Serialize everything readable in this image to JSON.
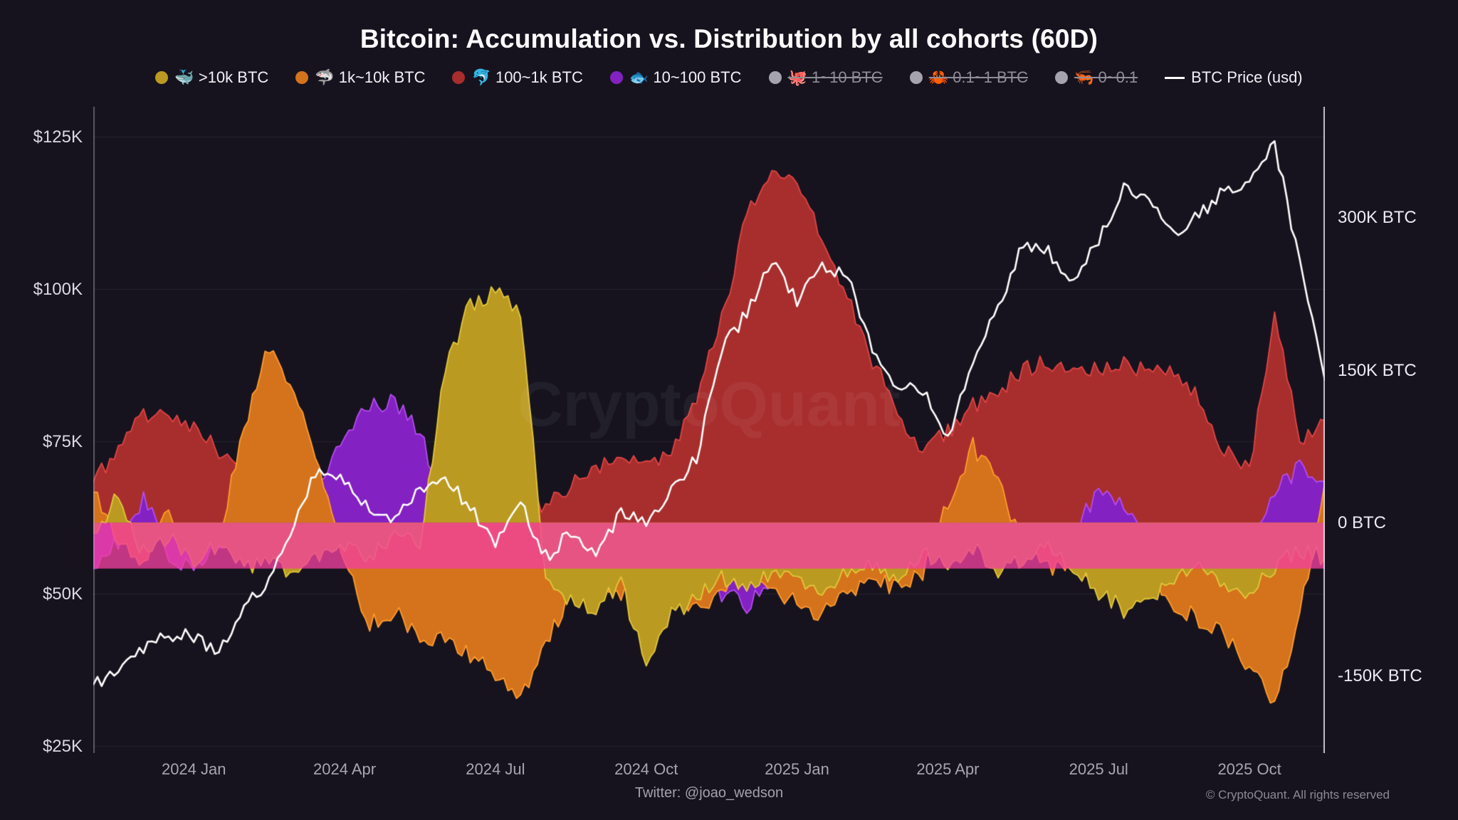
{
  "title": "Bitcoin: Accumulation vs. Distribution by all cohorts (60D)",
  "watermark": "CryptoQuant",
  "footer": {
    "twitter": "Twitter: @joao_wedson",
    "copyright": "© CryptoQuant. All rights reserved"
  },
  "colors": {
    "background": "#16131e",
    "grid": "rgba(255,255,255,0.07)",
    "axis_left_line": "rgba(172,170,184,0.45)",
    "axis_right_line": "rgba(226,224,234,0.85)",
    "price_line": "#ffffff",
    "band": "rgba(242,64,159,0.78)"
  },
  "legend": {
    "items": [
      {
        "label": "🐳 >10k BTC",
        "dot": "#bb9a22",
        "marker": "dot",
        "disabled": false
      },
      {
        "label": "🦈 1k~10k BTC",
        "dot": "#d4731c",
        "marker": "dot",
        "disabled": false
      },
      {
        "label": "🐬 100~1k BTC",
        "dot": "#a82e2e",
        "marker": "dot",
        "disabled": false
      },
      {
        "label": "🐟 10~100 BTC",
        "dot": "#8321c2",
        "marker": "dot",
        "disabled": false
      },
      {
        "label": "🐙 1~10 BTC",
        "dot": "#a5a3ad",
        "marker": "dot",
        "disabled": true
      },
      {
        "label": "🦀 0.1~1 BTC",
        "dot": "#a5a3ad",
        "marker": "dot",
        "disabled": true
      },
      {
        "label": "🦐 0~0.1",
        "dot": "#a5a3ad",
        "marker": "dot",
        "disabled": true
      },
      {
        "label": "BTC Price (usd)",
        "dot": "#ffffff",
        "marker": "line",
        "disabled": false
      }
    ]
  },
  "chart_data": {
    "type": "area",
    "title": "Bitcoin: Accumulation vs. Distribution by all cohorts (60D)",
    "x_unit": "months since 2023-11-01",
    "x": [
      0,
      0.5,
      1,
      1.5,
      2,
      2.5,
      3,
      3.5,
      4,
      4.5,
      5,
      5.5,
      6,
      6.5,
      7,
      7.5,
      8,
      8.5,
      9,
      9.5,
      10,
      10.5,
      11,
      11.5,
      12,
      12.5,
      13,
      13.5,
      14,
      14.5,
      15,
      15.5,
      16,
      16.5,
      17,
      17.5,
      18,
      18.5,
      19,
      19.5,
      20,
      20.5,
      21,
      21.5,
      22,
      22.5,
      23,
      23.5,
      24,
      24.5
    ],
    "x_ticks": {
      "positions": [
        2,
        5,
        8,
        11,
        14,
        17,
        20,
        23
      ],
      "labels": [
        "2024 Jan",
        "2024 Apr",
        "2024 Jul",
        "2024 Oct",
        "2025 Jan",
        "2025 Apr",
        "2025 Jul",
        "2025 Oct"
      ]
    },
    "left_axis": {
      "ticks": [
        25,
        50,
        75,
        100,
        125
      ],
      "labels": [
        "$25K",
        "$50K",
        "$75K",
        "$100K",
        "$125K"
      ],
      "range": [
        23.8,
        129.9
      ]
    },
    "right_axis": {
      "ticks": [
        -150,
        0,
        150,
        300
      ],
      "labels": [
        "-150K BTC",
        "0 BTC",
        "150K BTC",
        "300K BTC"
      ],
      "range": [
        -226,
        408
      ]
    },
    "band": {
      "from": 0,
      "to": -45
    },
    "series": [
      {
        "name": "100~1k BTC",
        "unit": "K BTC",
        "fill": "#a82e2e",
        "stroke": "#e04545",
        "values": [
          40,
          75,
          105,
          110,
          95,
          70,
          55,
          60,
          45,
          20,
          -20,
          -30,
          -55,
          -95,
          -50,
          15,
          25,
          15,
          20,
          35,
          55,
          65,
          60,
          70,
          120,
          200,
          300,
          345,
          330,
          280,
          220,
          160,
          110,
          70,
          90,
          115,
          130,
          150,
          160,
          145,
          150,
          160,
          145,
          150,
          120,
          70,
          50,
          210,
          80,
          100
        ]
      },
      {
        "name": "10~100 BTC",
        "unit": "K BTC",
        "fill": "#8321c2",
        "stroke": "#b44df0",
        "values": [
          -45,
          -20,
          25,
          -30,
          -50,
          -25,
          15,
          35,
          20,
          45,
          80,
          115,
          120,
          85,
          25,
          -15,
          -45,
          -80,
          -55,
          -30,
          -20,
          -35,
          -25,
          -45,
          -55,
          -70,
          -80,
          -60,
          -45,
          -30,
          -40,
          -25,
          -45,
          -30,
          -20,
          25,
          15,
          -20,
          -30,
          -15,
          35,
          20,
          -25,
          -35,
          -45,
          -30,
          -20,
          30,
          55,
          40
        ]
      },
      {
        "name": "1k~10k BTC",
        "unit": "K BTC",
        "fill": "#d4731c",
        "stroke": "#ff9d2e",
        "values": [
          30,
          -20,
          -45,
          10,
          -25,
          -10,
          90,
          175,
          120,
          60,
          -40,
          -100,
          -85,
          -115,
          -110,
          -130,
          -150,
          -170,
          -120,
          -70,
          -55,
          -70,
          -50,
          -65,
          -85,
          -70,
          -50,
          -65,
          -80,
          -90,
          -70,
          -55,
          -65,
          -50,
          20,
          75,
          40,
          -20,
          -45,
          -35,
          -55,
          -70,
          -55,
          -80,
          -95,
          -110,
          -140,
          -175,
          -90,
          40
        ]
      },
      {
        "name": ">10k BTC",
        "unit": "K BTC",
        "fill": "#bb9a22",
        "stroke": "#e3c83a",
        "values": [
          -10,
          25,
          -30,
          -15,
          -40,
          -20,
          -45,
          -35,
          -50,
          -30,
          -20,
          -35,
          -15,
          -20,
          150,
          215,
          228,
          205,
          -55,
          -75,
          -85,
          -60,
          -140,
          -90,
          -75,
          -55,
          -70,
          -45,
          -55,
          -65,
          -50,
          -40,
          -55,
          -30,
          -45,
          -25,
          -50,
          -35,
          -25,
          -45,
          -70,
          -85,
          -75,
          -55,
          -40,
          -60,
          -70,
          -45,
          -25,
          -35
        ]
      }
    ],
    "price": {
      "name": "BTC Price (usd)",
      "unit": "K USD",
      "values": [
        35,
        37,
        41,
        43,
        43,
        40,
        48,
        52,
        62,
        71,
        68,
        64,
        62,
        67,
        69,
        64,
        58,
        65,
        56,
        60,
        57,
        63,
        62,
        67,
        72,
        90,
        96,
        105,
        98,
        104,
        102,
        90,
        84,
        83,
        76,
        88,
        97,
        108,
        106,
        101,
        108,
        117,
        114,
        109,
        112,
        116,
        118,
        124,
        104,
        85
      ]
    }
  }
}
